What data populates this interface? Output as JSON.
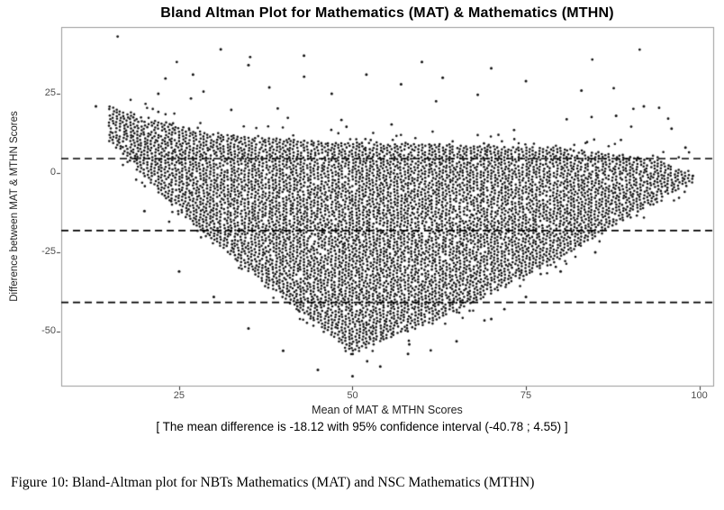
{
  "figure": {
    "caption": "Figure 10: Bland-Altman plot for NBTs Mathematics (MAT) and NSC Mathematics (MTHN)"
  },
  "colors": {
    "point_color": "#101010",
    "panel_border": "#9a9a9a",
    "tick_mark": "#333333",
    "tick_label": "#4d4d4d",
    "reference_line": "#000000",
    "background": "#ffffff"
  },
  "chart_data": {
    "type": "scatter",
    "title": "Bland Altman Plot for Mathematics (MAT) & Mathematics (MTHN)",
    "xlabel": "Mean of MAT & MTHN Scores",
    "ylabel": "Difference between MAT & MTHN Scores",
    "subtitle": "[ The mean difference is -18.12 with 95% confidence interval (-40.78 ; 4.55) ]",
    "xlim": [
      8,
      102
    ],
    "ylim": [
      -67,
      46
    ],
    "x_ticks": [
      25,
      50,
      75,
      100
    ],
    "y_ticks": [
      25,
      0,
      -25,
      -50
    ],
    "grid": "off",
    "legend": "none",
    "point_color": "#101010",
    "reference_lines": {
      "style": "dashed",
      "mean_difference": -18.12,
      "ci_upper": 4.55,
      "ci_lower": -40.78
    },
    "point_cloud": {
      "description": "Dense triangular lattice of several thousand black points (integer score pairs); widest span near mean=50, converging toward mean=99",
      "top_edge": [
        [
          15,
          21
        ],
        [
          28,
          13
        ],
        [
          45,
          10
        ],
        [
          80,
          8
        ],
        [
          95,
          4
        ],
        [
          99,
          -1
        ]
      ],
      "bottom_edge": [
        [
          15,
          10
        ],
        [
          25,
          -13
        ],
        [
          35,
          -31
        ],
        [
          50,
          -57
        ],
        [
          65,
          -44
        ],
        [
          80,
          -27
        ],
        [
          90,
          -14
        ],
        [
          99,
          -3
        ]
      ],
      "m_step": 0.5,
      "d_step": 1,
      "fill_probability": 0.94
    },
    "outlier_points": [
      [
        13,
        21
      ],
      [
        22,
        25
      ],
      [
        27,
        31
      ],
      [
        31,
        39
      ],
      [
        35,
        34
      ],
      [
        38,
        27
      ],
      [
        43,
        37
      ],
      [
        47,
        25
      ],
      [
        52,
        31
      ],
      [
        57,
        28
      ],
      [
        60,
        35
      ],
      [
        63,
        30
      ],
      [
        70,
        33
      ],
      [
        75,
        29
      ],
      [
        83,
        26
      ],
      [
        88,
        18
      ],
      [
        92,
        21
      ],
      [
        96,
        14
      ],
      [
        98,
        8
      ],
      [
        20,
        -12
      ],
      [
        25,
        -31
      ],
      [
        30,
        -39
      ],
      [
        35,
        -49
      ],
      [
        40,
        -56
      ],
      [
        45,
        -62
      ],
      [
        50,
        -64
      ],
      [
        54,
        -61
      ],
      [
        58,
        -57
      ],
      [
        65,
        -53
      ],
      [
        70,
        -46
      ],
      [
        75,
        -39
      ],
      [
        80,
        -31
      ],
      [
        85,
        -25
      ]
    ]
  }
}
